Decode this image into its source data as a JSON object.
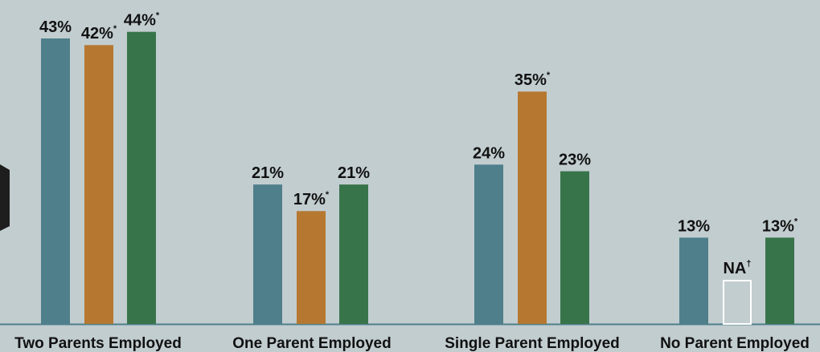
{
  "chart_data": {
    "type": "bar",
    "categories": [
      "Two Parents Employed",
      "One Parent Employed",
      "Single Parent Employed",
      "No Parent Employed"
    ],
    "series": [
      {
        "color": "#4e7f8a",
        "values": [
          43,
          21,
          24,
          13
        ],
        "labels": [
          "43%",
          "21%",
          "24%",
          "13%"
        ],
        "marks": [
          "",
          "",
          "",
          ""
        ]
      },
      {
        "color": "#b67830",
        "values": [
          42,
          17,
          35,
          null
        ],
        "labels": [
          "42%",
          "17%",
          "35%",
          "NA"
        ],
        "marks": [
          "*",
          "*",
          "*",
          "†"
        ]
      },
      {
        "color": "#38744a",
        "values": [
          44,
          21,
          23,
          13
        ],
        "labels": [
          "44%",
          "21%",
          "23%",
          "13%"
        ],
        "marks": [
          "*",
          "",
          "",
          "*"
        ]
      }
    ],
    "ylim": [
      0,
      45
    ],
    "grid": false,
    "legend": "none",
    "na_box_color": "#ffffff",
    "baseline_color": "#4e7f8a",
    "background": "#c2cdd0",
    "dark_accent_color": "#1e1e1e"
  }
}
